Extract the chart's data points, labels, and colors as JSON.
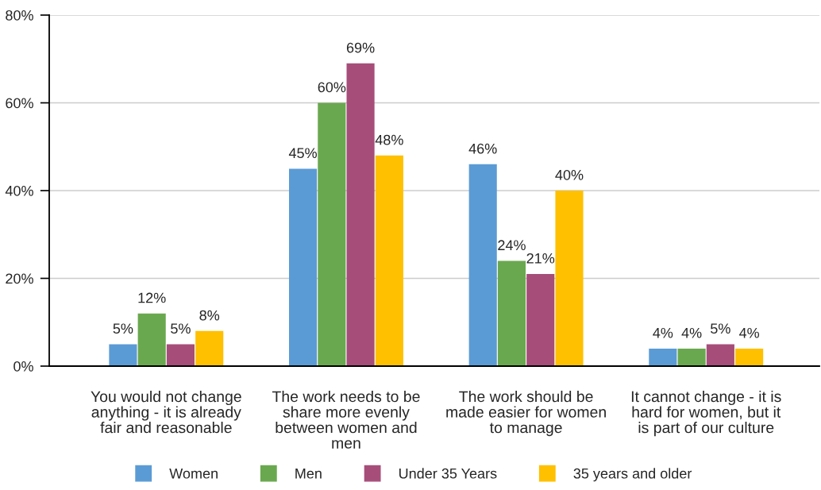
{
  "chart_data": {
    "type": "bar",
    "categories": [
      "You would not change\nanything - it is already\nfair and reasonable",
      "The work needs to be\nshare more evenly\nbetween women and\nmen",
      "The work should be\nmade easier for women\nto manage",
      "It cannot change - it is\nhard for women, but it\nis part of our culture"
    ],
    "series": [
      {
        "name": "Women",
        "color": "#5b9bd5",
        "values": [
          5,
          45,
          46,
          4
        ],
        "value_labels": [
          "5%",
          "45%",
          "46%",
          "4%"
        ]
      },
      {
        "name": "Men",
        "color": "#6aa84f",
        "values": [
          12,
          60,
          24,
          4
        ],
        "value_labels": [
          "12%",
          "60%",
          "24%",
          "4%"
        ]
      },
      {
        "name": "Under 35 Years",
        "color": "#a64d79",
        "values": [
          5,
          69,
          21,
          5
        ],
        "value_labels": [
          "5%",
          "69%",
          "21%",
          "5%"
        ]
      },
      {
        "name": "35 years and older",
        "color": "#ffc000",
        "values": [
          8,
          48,
          40,
          4
        ],
        "value_labels": [
          "8%",
          "48%",
          "40%",
          "4%"
        ]
      }
    ],
    "ylim": [
      0,
      80
    ],
    "yticks": [
      {
        "value": 0,
        "label": "0%"
      },
      {
        "value": 20,
        "label": "20%"
      },
      {
        "value": 40,
        "label": "40%"
      },
      {
        "value": 60,
        "label": "60%"
      },
      {
        "value": 80,
        "label": "80%"
      }
    ],
    "grid": "y",
    "legend": "bottom"
  }
}
